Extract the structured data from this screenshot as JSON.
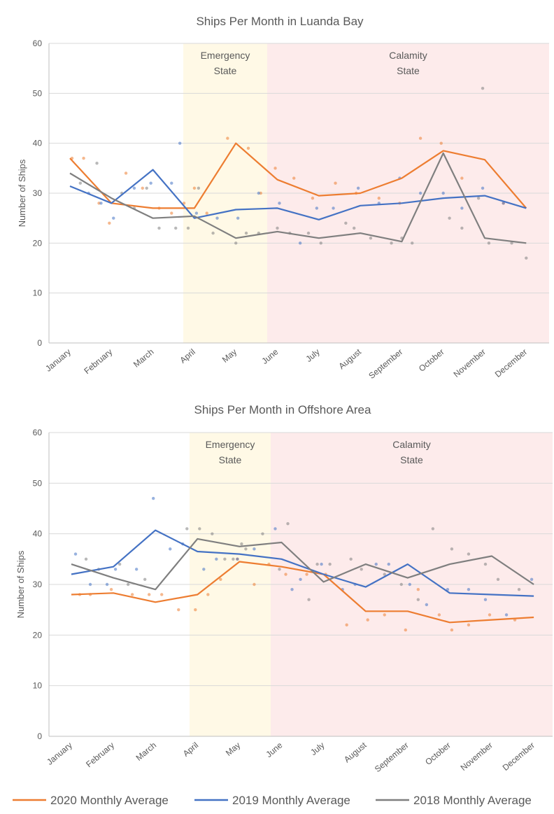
{
  "colors": {
    "series_2020": "#ED7D31",
    "series_2019": "#4472C4",
    "series_2018": "#7F7F7F",
    "emergency_band": "#FFF9E6",
    "calamity_band": "#FDEBEB",
    "grid": "#D9D9D9",
    "text": "#595959"
  },
  "legend": {
    "items": [
      {
        "label": "2020 Monthly Average",
        "color": "#ED7D31"
      },
      {
        "label": "2019 Monthly Average",
        "color": "#4472C4"
      },
      {
        "label": "2018 Monthly Average",
        "color": "#7F7F7F"
      }
    ]
  },
  "chart_data": [
    {
      "type": "line",
      "title": "Ships Per Month in Luanda Bay",
      "ylabel": "Number of Ships",
      "xlabel": "",
      "ylim": [
        0,
        60
      ],
      "yticks": [
        0,
        10,
        20,
        30,
        40,
        50,
        60
      ],
      "categories": [
        "January",
        "February",
        "March",
        "April",
        "May",
        "June",
        "July",
        "August",
        "September",
        "October",
        "November",
        "December"
      ],
      "grid": true,
      "legend": "bottom",
      "annotations": [
        {
          "label_lines": [
            "Emergency",
            "State"
          ],
          "from": "April",
          "to": "May",
          "color": "#FFF9E6"
        },
        {
          "label_lines": [
            "Calamity",
            "State"
          ],
          "from": "June",
          "to": "December",
          "color": "#FDEBEB"
        }
      ],
      "series": [
        {
          "name": "2020 Monthly Average",
          "color": "#ED7D31",
          "values": [
            37,
            28,
            27,
            27,
            40,
            32.7,
            29.5,
            30,
            33,
            38.5,
            36.7,
            27
          ]
        },
        {
          "name": "2019 Monthly Average",
          "color": "#4472C4",
          "values": [
            31.4,
            28,
            34.7,
            25,
            26.7,
            27,
            24.7,
            27.5,
            28,
            29,
            29.5,
            27
          ]
        },
        {
          "name": "2018 Monthly Average",
          "color": "#7F7F7F",
          "values": [
            34,
            29,
            25,
            25.4,
            21,
            22.3,
            21,
            22,
            20.3,
            38,
            21,
            20
          ]
        }
      ],
      "scatter": [
        {
          "color": "#ED7D31",
          "points": [
            [
              0.05,
              37
            ],
            [
              0.33,
              37
            ],
            [
              0.7,
              28
            ],
            [
              0.95,
              24
            ],
            [
              1.35,
              34
            ],
            [
              1.75,
              31
            ],
            [
              2.15,
              27
            ],
            [
              2.45,
              26
            ],
            [
              2.75,
              28
            ],
            [
              3.0,
              31
            ],
            [
              3.3,
              26
            ],
            [
              3.8,
              41
            ],
            [
              4.3,
              39
            ],
            [
              4.6,
              30
            ],
            [
              4.95,
              35
            ],
            [
              5.4,
              33
            ],
            [
              5.85,
              29
            ],
            [
              6.4,
              32
            ],
            [
              6.9,
              30
            ],
            [
              7.45,
              29
            ],
            [
              7.95,
              28
            ],
            [
              8.45,
              41
            ],
            [
              8.95,
              40
            ],
            [
              9.45,
              33
            ],
            [
              10.45,
              28
            ]
          ]
        },
        {
          "color": "#4472C4",
          "points": [
            [
              0.45,
              30
            ],
            [
              0.75,
              28
            ],
            [
              1.05,
              25
            ],
            [
              1.55,
              31
            ],
            [
              1.95,
              32
            ],
            [
              2.45,
              32
            ],
            [
              2.65,
              40
            ],
            [
              3.05,
              26
            ],
            [
              3.55,
              25
            ],
            [
              4.05,
              25
            ],
            [
              4.55,
              30
            ],
            [
              5.05,
              28
            ],
            [
              5.55,
              20
            ],
            [
              5.95,
              27
            ],
            [
              6.35,
              27
            ],
            [
              6.95,
              31
            ],
            [
              7.45,
              28
            ],
            [
              7.95,
              33
            ],
            [
              8.45,
              30
            ],
            [
              9.0,
              30
            ],
            [
              9.45,
              27
            ],
            [
              9.95,
              31
            ],
            [
              10.45,
              28
            ]
          ]
        },
        {
          "color": "#7F7F7F",
          "points": [
            [
              0.25,
              32
            ],
            [
              0.65,
              36
            ],
            [
              1.25,
              30
            ],
            [
              1.55,
              27
            ],
            [
              1.85,
              31
            ],
            [
              2.15,
              23
            ],
            [
              2.55,
              23
            ],
            [
              2.85,
              23
            ],
            [
              3.1,
              31
            ],
            [
              3.45,
              22
            ],
            [
              4.0,
              20
            ],
            [
              4.25,
              22
            ],
            [
              4.55,
              22
            ],
            [
              5.0,
              23
            ],
            [
              5.3,
              22
            ],
            [
              5.75,
              22
            ],
            [
              6.05,
              20
            ],
            [
              6.65,
              24
            ],
            [
              6.85,
              23
            ],
            [
              7.25,
              21
            ],
            [
              7.75,
              20
            ],
            [
              8.0,
              21
            ],
            [
              8.25,
              20
            ],
            [
              9.15,
              25
            ],
            [
              9.45,
              23
            ],
            [
              9.95,
              51
            ],
            [
              9.85,
              29
            ],
            [
              10.1,
              20
            ],
            [
              10.65,
              20
            ],
            [
              11.0,
              17
            ]
          ]
        }
      ]
    },
    {
      "type": "line",
      "title": "Ships Per Month in Offshore Area",
      "ylabel": "Number of Ships",
      "xlabel": "",
      "ylim": [
        0,
        60
      ],
      "yticks": [
        0,
        10,
        20,
        30,
        40,
        50,
        60
      ],
      "categories": [
        "January",
        "February",
        "March",
        "April",
        "May",
        "June",
        "July",
        "August",
        "September",
        "October",
        "November",
        "December"
      ],
      "grid": true,
      "legend": "bottom",
      "annotations": [
        {
          "label_lines": [
            "Emergency",
            "State"
          ],
          "from": "April",
          "to": "May",
          "color": "#FFF9E6"
        },
        {
          "label_lines": [
            "Calamity",
            "State"
          ],
          "from": "June",
          "to": "December",
          "color": "#FDEBEB"
        }
      ],
      "series": [
        {
          "name": "2020 Monthly Average",
          "color": "#ED7D31",
          "values": [
            28,
            28.3,
            26.5,
            28,
            34.5,
            33.5,
            32,
            24.7,
            24.7,
            22.5,
            23,
            23.5
          ]
        },
        {
          "name": "2019 Monthly Average",
          "color": "#4472C4",
          "values": [
            32,
            33.5,
            40.7,
            36.5,
            36,
            35,
            32,
            29.5,
            34,
            28.3,
            28,
            27.7
          ]
        },
        {
          "name": "2018 Monthly Average",
          "color": "#7F7F7F",
          "values": [
            34,
            31.3,
            29,
            39,
            37.5,
            38.3,
            30.5,
            34,
            31.3,
            34,
            35.6,
            30
          ]
        }
      ],
      "scatter": [
        {
          "color": "#ED7D31",
          "points": [
            [
              0.2,
              28
            ],
            [
              0.45,
              28
            ],
            [
              0.95,
              29
            ],
            [
              1.45,
              28
            ],
            [
              1.85,
              28
            ],
            [
              2.15,
              28
            ],
            [
              2.55,
              25
            ],
            [
              2.95,
              25
            ],
            [
              3.25,
              28
            ],
            [
              3.55,
              31
            ],
            [
              3.95,
              35
            ],
            [
              4.35,
              30
            ],
            [
              4.7,
              34
            ],
            [
              5.1,
              32
            ],
            [
              5.6,
              32
            ],
            [
              6.05,
              32
            ],
            [
              6.55,
              22
            ],
            [
              7.05,
              23
            ],
            [
              7.45,
              24
            ],
            [
              7.95,
              21
            ],
            [
              8.25,
              29
            ],
            [
              8.75,
              24
            ],
            [
              9.05,
              21
            ],
            [
              9.45,
              22
            ],
            [
              9.95,
              24
            ],
            [
              10.55,
              23
            ]
          ]
        },
        {
          "color": "#4472C4",
          "points": [
            [
              0.1,
              36
            ],
            [
              0.45,
              30
            ],
            [
              0.85,
              30
            ],
            [
              1.05,
              33
            ],
            [
              1.55,
              33
            ],
            [
              1.95,
              47
            ],
            [
              2.35,
              37
            ],
            [
              2.65,
              38
            ],
            [
              3.15,
              33
            ],
            [
              3.45,
              35
            ],
            [
              3.95,
              35
            ],
            [
              4.35,
              37
            ],
            [
              4.85,
              41
            ],
            [
              5.25,
              29
            ],
            [
              5.45,
              31
            ],
            [
              5.95,
              34
            ],
            [
              6.45,
              29
            ],
            [
              6.75,
              30
            ],
            [
              7.25,
              34
            ],
            [
              7.55,
              34
            ],
            [
              8.05,
              30
            ],
            [
              8.45,
              26
            ],
            [
              8.95,
              29
            ],
            [
              9.45,
              29
            ],
            [
              9.85,
              27
            ],
            [
              10.35,
              24
            ],
            [
              10.95,
              31
            ]
          ]
        },
        {
          "color": "#7F7F7F",
          "points": [
            [
              0.35,
              35
            ],
            [
              0.65,
              33
            ],
            [
              1.15,
              34
            ],
            [
              1.35,
              30
            ],
            [
              1.75,
              31
            ],
            [
              2.75,
              41
            ],
            [
              3.05,
              41
            ],
            [
              3.35,
              40
            ],
            [
              3.65,
              35
            ],
            [
              3.85,
              35
            ],
            [
              4.05,
              38
            ],
            [
              4.15,
              37
            ],
            [
              4.55,
              40
            ],
            [
              4.95,
              33
            ],
            [
              5.15,
              42
            ],
            [
              5.65,
              27
            ],
            [
              5.85,
              34
            ],
            [
              6.15,
              34
            ],
            [
              6.65,
              35
            ],
            [
              6.9,
              33
            ],
            [
              7.45,
              32
            ],
            [
              7.85,
              30
            ],
            [
              8.25,
              27
            ],
            [
              8.6,
              41
            ],
            [
              9.05,
              37
            ],
            [
              9.45,
              36
            ],
            [
              9.85,
              34
            ],
            [
              10.15,
              31
            ],
            [
              10.65,
              29
            ]
          ]
        }
      ]
    }
  ]
}
